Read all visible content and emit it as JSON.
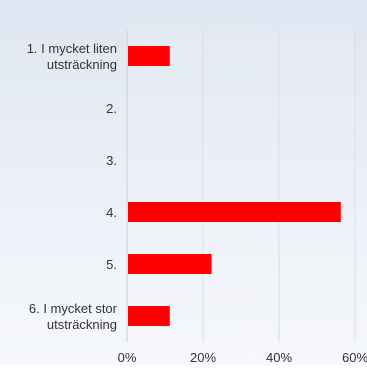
{
  "chart_data": {
    "type": "bar",
    "orientation": "horizontal",
    "categories": [
      [
        "1. I mycket liten",
        "utsträckning"
      ],
      [
        "2."
      ],
      [
        "3."
      ],
      [
        "4."
      ],
      [
        "5."
      ],
      [
        "6. I mycket stor",
        "utsträckning"
      ]
    ],
    "values": [
      11,
      0,
      0,
      56,
      22,
      11
    ],
    "unit": "%",
    "xlim": [
      0,
      60
    ],
    "xticks": [
      0,
      20,
      40,
      60
    ],
    "xtick_labels": [
      "0%",
      "20%",
      "40%",
      "60%"
    ],
    "grid": true,
    "bar_color": "#ff0000",
    "title": "",
    "xlabel": "",
    "ylabel": ""
  }
}
